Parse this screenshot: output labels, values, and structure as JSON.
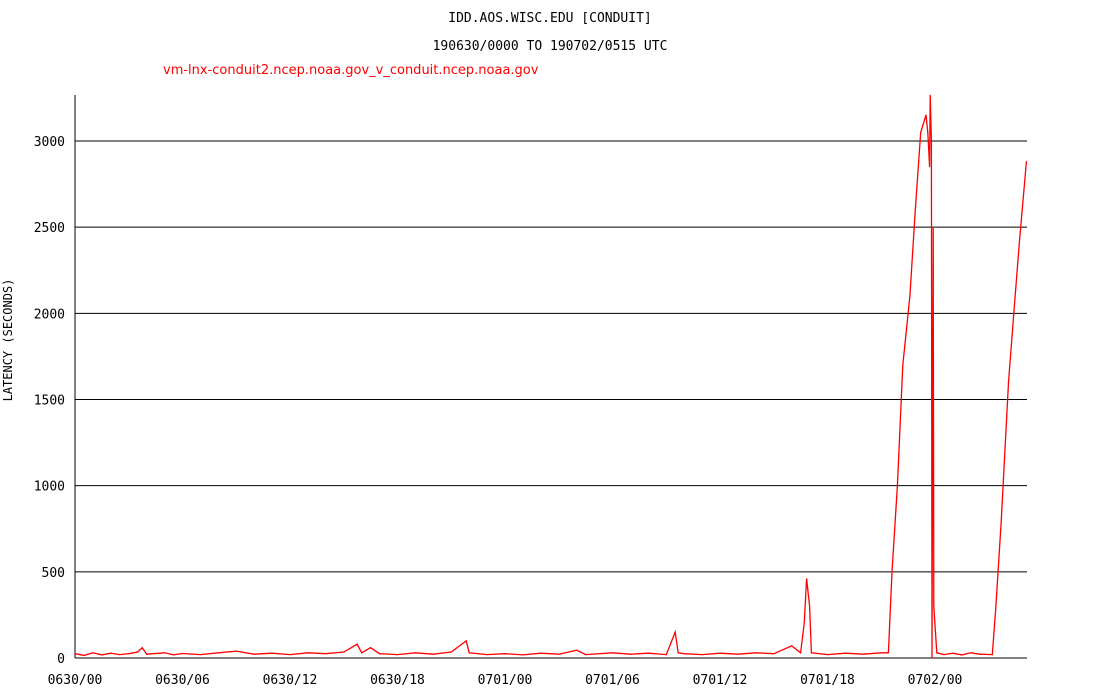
{
  "chart_data": {
    "type": "line",
    "title": "IDD.AOS.WISC.EDU [CONDUIT]",
    "subtitle": "190630/0000 TO 190702/0515 UTC",
    "ylabel": "LATENCY (SECONDS)",
    "xlabel": "",
    "ylim": [
      0,
      3265
    ],
    "xlim": [
      "0630/0000",
      "0702/0515"
    ],
    "yticks": [
      0,
      500,
      1000,
      1500,
      2000,
      2500,
      3000
    ],
    "xticks": [
      "0630/00",
      "0630/06",
      "0630/12",
      "0630/18",
      "0701/00",
      "0701/06",
      "0701/12",
      "0701/18",
      "0702/00"
    ],
    "grid": "horizontal",
    "legend": "top-left",
    "series": [
      {
        "name": "vm-lnx-conduit2.ncep.noaa.gov_v_conduit.ncep.noaa.gov",
        "color": "#ff0000",
        "points": [
          [
            "0630/0000",
            25
          ],
          [
            "0630/0030",
            15
          ],
          [
            "0630/0100",
            30
          ],
          [
            "0630/0130",
            18
          ],
          [
            "0630/0200",
            28
          ],
          [
            "0630/0230",
            20
          ],
          [
            "0630/0300",
            25
          ],
          [
            "0630/0330",
            35
          ],
          [
            "0630/0345",
            60
          ],
          [
            "0630/0400",
            22
          ],
          [
            "0630/0500",
            30
          ],
          [
            "0630/0530",
            18
          ],
          [
            "0630/0600",
            26
          ],
          [
            "0630/0700",
            20
          ],
          [
            "0630/0800",
            30
          ],
          [
            "0630/0900",
            40
          ],
          [
            "0630/1000",
            22
          ],
          [
            "0630/1100",
            28
          ],
          [
            "0630/1200",
            20
          ],
          [
            "0630/1300",
            30
          ],
          [
            "0630/1400",
            25
          ],
          [
            "0630/1500",
            35
          ],
          [
            "0630/1545",
            80
          ],
          [
            "0630/1600",
            30
          ],
          [
            "0630/1630",
            60
          ],
          [
            "0630/1700",
            25
          ],
          [
            "0630/1800",
            20
          ],
          [
            "0630/1900",
            30
          ],
          [
            "0630/2000",
            22
          ],
          [
            "0630/2100",
            35
          ],
          [
            "0630/2150",
            100
          ],
          [
            "0630/2200",
            30
          ],
          [
            "0630/2300",
            20
          ],
          [
            "0701/0000",
            25
          ],
          [
            "0701/0100",
            18
          ],
          [
            "0701/0200",
            28
          ],
          [
            "0701/0300",
            22
          ],
          [
            "0701/0400",
            45
          ],
          [
            "0701/0430",
            20
          ],
          [
            "0701/0600",
            30
          ],
          [
            "0701/0700",
            22
          ],
          [
            "0701/0800",
            28
          ],
          [
            "0701/0900",
            20
          ],
          [
            "0701/0930",
            150
          ],
          [
            "0701/0940",
            30
          ],
          [
            "0701/1000",
            25
          ],
          [
            "0701/1100",
            20
          ],
          [
            "0701/1200",
            28
          ],
          [
            "0701/1300",
            22
          ],
          [
            "0701/1400",
            30
          ],
          [
            "0701/1500",
            25
          ],
          [
            "0701/1600",
            70
          ],
          [
            "0701/1630",
            30
          ],
          [
            "0701/1642",
            200
          ],
          [
            "0701/1650",
            460
          ],
          [
            "0701/1700",
            300
          ],
          [
            "0701/1706",
            30
          ],
          [
            "0701/1800",
            20
          ],
          [
            "0701/1900",
            28
          ],
          [
            "0701/2000",
            22
          ],
          [
            "0701/2100",
            30
          ],
          [
            "0701/2124",
            30
          ],
          [
            "0701/2136",
            500
          ],
          [
            "0701/2154",
            1000
          ],
          [
            "0701/2212",
            1700
          ],
          [
            "0701/2236",
            2100
          ],
          [
            "0701/2254",
            2600
          ],
          [
            "0701/2312",
            3050
          ],
          [
            "0701/2330",
            3150
          ],
          [
            "0701/2336",
            3050
          ],
          [
            "0701/2342",
            2850
          ],
          [
            "0701/2344",
            3265
          ],
          [
            "0701/2348",
            3000
          ],
          [
            "0701/2350",
            0
          ],
          [
            "0701/2354",
            2500
          ],
          [
            "0701/2356",
            300
          ],
          [
            "0702/0006",
            30
          ],
          [
            "0702/0030",
            20
          ],
          [
            "0702/0100",
            28
          ],
          [
            "0702/0130",
            18
          ],
          [
            "0702/0200",
            30
          ],
          [
            "0702/0230",
            22
          ],
          [
            "0702/0312",
            20
          ],
          [
            "0702/0324",
            300
          ],
          [
            "0702/0342",
            800
          ],
          [
            "0702/0406",
            1600
          ],
          [
            "0702/0424",
            2000
          ],
          [
            "0702/0442",
            2400
          ],
          [
            "0702/0506",
            2880
          ]
        ]
      }
    ]
  }
}
